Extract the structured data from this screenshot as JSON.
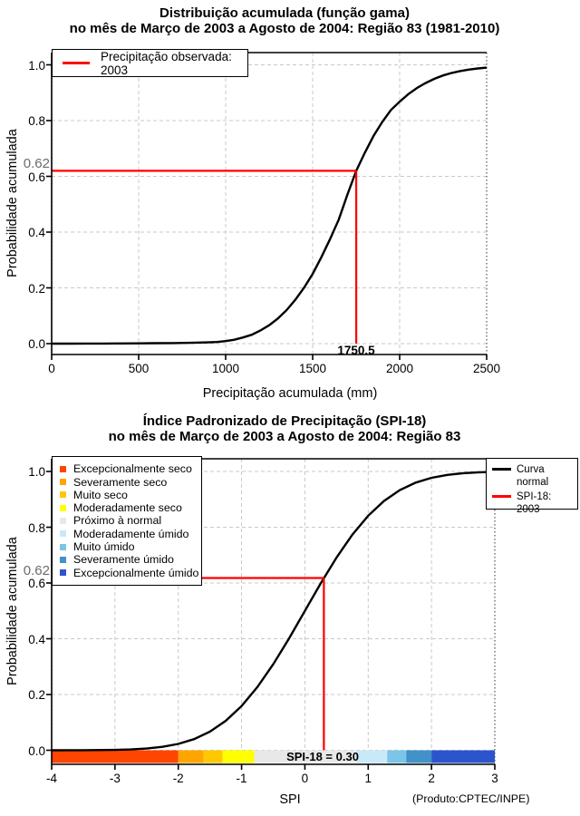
{
  "chart_data": [
    {
      "type": "line",
      "title": "Distribuição acumulada (função gama)",
      "subtitle": "no mês de Março de 2003 a Agosto de 2004: Região 83 (1981-2010)",
      "xlabel": "Precipitação acumulada (mm)",
      "ylabel": "Probabilidade acumulada",
      "xlim": [
        0,
        2500
      ],
      "ylim": [
        0,
        1
      ],
      "x_ticks": [
        "0",
        "500",
        "1000",
        "1500",
        "2000",
        "2500"
      ],
      "y_ticks": [
        "0.0",
        "0.2",
        "0.4",
        "0.6",
        "0.8",
        "1.0"
      ],
      "grid": true,
      "legend_position": "top-left",
      "legend": [
        {
          "label": "Precipitação observada: 2003",
          "color": "#ff0000"
        }
      ],
      "series": [
        {
          "name": "Distribuição acumulada (função gama)",
          "color": "#000000",
          "points": [
            [
              0,
              0
            ],
            [
              100,
              0
            ],
            [
              200,
              0.0002
            ],
            [
              300,
              0.0004
            ],
            [
              400,
              0.0007
            ],
            [
              500,
              0.001
            ],
            [
              600,
              0.0015
            ],
            [
              700,
              0.002
            ],
            [
              800,
              0.003
            ],
            [
              900,
              0.0045
            ],
            [
              950,
              0.006
            ],
            [
              1000,
              0.009
            ],
            [
              1050,
              0.014
            ],
            [
              1100,
              0.022
            ],
            [
              1150,
              0.032
            ],
            [
              1200,
              0.047
            ],
            [
              1250,
              0.066
            ],
            [
              1300,
              0.09
            ],
            [
              1350,
              0.12
            ],
            [
              1400,
              0.157
            ],
            [
              1450,
              0.2
            ],
            [
              1500,
              0.25
            ],
            [
              1550,
              0.31
            ],
            [
              1600,
              0.375
            ],
            [
              1650,
              0.445
            ],
            [
              1700,
              0.535
            ],
            [
              1750.5,
              0.62
            ],
            [
              1800,
              0.685
            ],
            [
              1850,
              0.745
            ],
            [
              1900,
              0.795
            ],
            [
              1950,
              0.838
            ],
            [
              2000,
              0.868
            ],
            [
              2050,
              0.895
            ],
            [
              2100,
              0.917
            ],
            [
              2150,
              0.935
            ],
            [
              2200,
              0.95
            ],
            [
              2250,
              0.962
            ],
            [
              2300,
              0.971
            ],
            [
              2350,
              0.978
            ],
            [
              2400,
              0.983
            ],
            [
              2450,
              0.987
            ],
            [
              2500,
              0.99
            ]
          ]
        }
      ],
      "annotations": {
        "prob": 0.62,
        "prob_label": "0.62",
        "x": 1750.5,
        "x_label": "1750.5",
        "color": "#ff0000"
      }
    },
    {
      "type": "line",
      "title": "Índice Padronizado de Precipitação (SPI-18)",
      "subtitle": "no mês de Março de 2003 a Agosto de 2004: Região 83",
      "xlabel": "SPI",
      "ylabel": "Probabilidade acumulada",
      "xlim": [
        -4,
        3
      ],
      "ylim": [
        0,
        1
      ],
      "x_ticks": [
        "-4",
        "-3",
        "-2",
        "-1",
        "0",
        "1",
        "2",
        "3"
      ],
      "y_ticks": [
        "0.0",
        "0.2",
        "0.4",
        "0.6",
        "0.8",
        "1.0"
      ],
      "grid": true,
      "legend_position": "top-right",
      "legend": [
        {
          "label": "Curva normal",
          "color": "#000000"
        },
        {
          "label": "SPI-18: 2003",
          "color": "#ff0000"
        }
      ],
      "categories": [
        {
          "label": "Excepcionalmente seco",
          "color": "#ff4500",
          "from": -4,
          "to": -2
        },
        {
          "label": "Severamente seco",
          "color": "#ffa500",
          "from": -2,
          "to": -1.6
        },
        {
          "label": "Muito seco",
          "color": "#ffc800",
          "from": -1.6,
          "to": -1.3
        },
        {
          "label": "Moderadamente seco",
          "color": "#ffff00",
          "from": -1.3,
          "to": -0.8
        },
        {
          "label": "Próximo à normal",
          "color": "#e8e8e8",
          "from": -0.8,
          "to": 0.8
        },
        {
          "label": "Moderadamente úmido",
          "color": "#c9e9f8",
          "from": 0.8,
          "to": 1.3
        },
        {
          "label": "Muito úmido",
          "color": "#7cc4e8",
          "from": 1.3,
          "to": 1.6
        },
        {
          "label": "Severamente úmido",
          "color": "#4291c8",
          "from": 1.6,
          "to": 2
        },
        {
          "label": "Excepcionalmente úmido",
          "color": "#2c55cd",
          "from": 2,
          "to": 3
        }
      ],
      "series": [
        {
          "name": "Curva normal",
          "color": "#000000",
          "points": [
            [
              -4,
              0.0001
            ],
            [
              -3.5,
              0.0002
            ],
            [
              -3,
              0.0013
            ],
            [
              -2.75,
              0.003
            ],
            [
              -2.5,
              0.0062
            ],
            [
              -2.25,
              0.0122
            ],
            [
              -2,
              0.0228
            ],
            [
              -1.75,
              0.0401
            ],
            [
              -1.5,
              0.0668
            ],
            [
              -1.25,
              0.1056
            ],
            [
              -1,
              0.1587
            ],
            [
              -0.75,
              0.2266
            ],
            [
              -0.5,
              0.3085
            ],
            [
              -0.25,
              0.4013
            ],
            [
              0,
              0.5
            ],
            [
              0.25,
              0.5987
            ],
            [
              0.5,
              0.6915
            ],
            [
              0.75,
              0.7734
            ],
            [
              1,
              0.8413
            ],
            [
              1.25,
              0.8944
            ],
            [
              1.5,
              0.9332
            ],
            [
              1.75,
              0.9599
            ],
            [
              2,
              0.9772
            ],
            [
              2.25,
              0.9878
            ],
            [
              2.5,
              0.9938
            ],
            [
              2.75,
              0.997
            ],
            [
              3,
              0.9987
            ]
          ]
        }
      ],
      "annotations": {
        "prob": 0.618,
        "prob_label": "0.62",
        "x": 0.3,
        "x_label": "SPI-18 = 0.30",
        "color": "#ff0000"
      },
      "credit": "(Produto:CPTEC/INPE)"
    }
  ]
}
